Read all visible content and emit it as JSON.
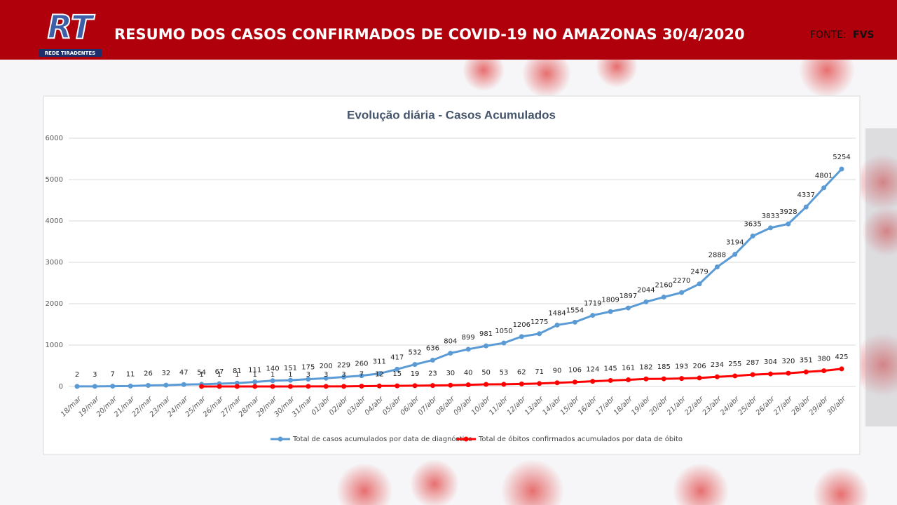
{
  "header": {
    "logo": "RT",
    "logo_caption": "REDE TIRADENTES",
    "title": "RESUMO DOS CASOS CONFIRMADOS DE COVID-19 NO AMAZONAS 30/4/2020",
    "source_label": "FONTE:",
    "source": "FVS"
  },
  "chart_data": {
    "type": "line",
    "title": "Evolução diária - Casos Acumulados",
    "categories": [
      "18/mar",
      "19/mar",
      "20/mar",
      "21/mar",
      "22/mar",
      "23/mar",
      "24/mar",
      "25/mar",
      "26/mar",
      "27/mar",
      "28/mar",
      "29/mar",
      "30/mar",
      "31/mar",
      "01/abr",
      "02/abr",
      "03/abr",
      "04/abr",
      "05/abr",
      "06/abr",
      "07/abr",
      "08/abr",
      "09/abr",
      "10/abr",
      "11/abr",
      "12/abr",
      "13/abr",
      "14/abr",
      "15/abr",
      "16/abr",
      "17/abr",
      "18/abr",
      "19/abr",
      "20/abr",
      "21/abr",
      "22/abr",
      "23/abr",
      "24/abr",
      "25/abr",
      "26/abr",
      "27/abr",
      "28/abr",
      "29/abr",
      "30/abr"
    ],
    "series": [
      {
        "name": "Total de casos acumulados por data de diagnóstico",
        "color": "#5b9bd5",
        "values": [
          2,
          3,
          7,
          11,
          26,
          32,
          47,
          54,
          67,
          81,
          111,
          140,
          151,
          175,
          200,
          229,
          260,
          311,
          417,
          532,
          636,
          804,
          899,
          981,
          1050,
          1206,
          1275,
          1484,
          1554,
          1719,
          1809,
          1897,
          2044,
          2160,
          2270,
          2479,
          2888,
          3194,
          3635,
          3833,
          3928,
          4337,
          4801,
          5254
        ]
      },
      {
        "name": "Total de óbitos confirmados acumulados por data de óbito",
        "color": "#ff0000",
        "values": [
          null,
          null,
          null,
          null,
          null,
          null,
          null,
          1,
          1,
          1,
          1,
          1,
          1,
          3,
          3,
          3,
          7,
          12,
          15,
          19,
          23,
          30,
          40,
          50,
          53,
          62,
          71,
          90,
          106,
          124,
          145,
          161,
          182,
          185,
          193,
          206,
          234,
          255,
          287,
          304,
          320,
          351,
          380,
          425
        ]
      }
    ],
    "ylim": [
      0,
      6000
    ],
    "yticks": [
      0,
      1000,
      2000,
      3000,
      4000,
      5000,
      6000
    ],
    "grid": true,
    "legend": "bottom"
  }
}
